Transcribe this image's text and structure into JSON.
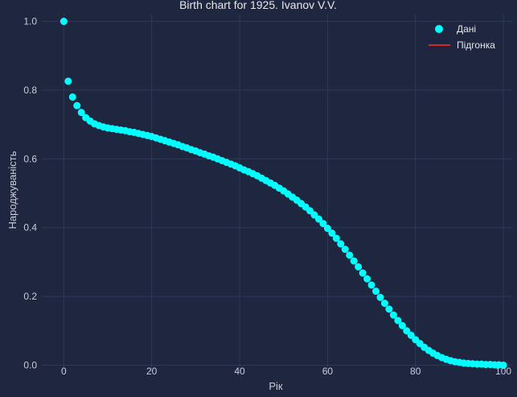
{
  "chart_data": {
    "type": "scatter",
    "title": "Birth chart for 1925. Ivanov V.V.",
    "xlabel": "Рік",
    "ylabel": "Народжуваність",
    "xlim": [
      -5,
      102
    ],
    "ylim": [
      -0.02,
      1.02
    ],
    "xticks": [
      "0",
      "20",
      "40",
      "60",
      "80",
      "100"
    ],
    "yticks": [
      "0.0",
      "0.2",
      "0.4",
      "0.6",
      "0.8",
      "1.0"
    ],
    "grid": true,
    "legend_position": "top-right",
    "series": [
      {
        "name": "Дані",
        "kind": "scatter",
        "color": "#00ffff",
        "x": [
          0,
          1,
          2,
          3,
          4,
          5,
          6,
          7,
          8,
          9,
          10,
          11,
          12,
          13,
          14,
          15,
          16,
          17,
          18,
          19,
          20,
          21,
          22,
          23,
          24,
          25,
          26,
          27,
          28,
          29,
          30,
          31,
          32,
          33,
          34,
          35,
          36,
          37,
          38,
          39,
          40,
          41,
          42,
          43,
          44,
          45,
          46,
          47,
          48,
          49,
          50,
          51,
          52,
          53,
          54,
          55,
          56,
          57,
          58,
          59,
          60,
          61,
          62,
          63,
          64,
          65,
          66,
          67,
          68,
          69,
          70,
          71,
          72,
          73,
          74,
          75,
          76,
          77,
          78,
          79,
          80,
          81,
          82,
          83,
          84,
          85,
          86,
          87,
          88,
          89,
          90,
          91,
          92,
          93,
          94,
          95,
          96,
          97,
          98,
          99,
          100
        ],
        "y": [
          1.0,
          0.826,
          0.78,
          0.755,
          0.735,
          0.72,
          0.71,
          0.702,
          0.697,
          0.693,
          0.69,
          0.688,
          0.686,
          0.684,
          0.682,
          0.679,
          0.677,
          0.674,
          0.671,
          0.668,
          0.665,
          0.661,
          0.657,
          0.653,
          0.649,
          0.645,
          0.641,
          0.636,
          0.632,
          0.627,
          0.623,
          0.618,
          0.614,
          0.609,
          0.605,
          0.6,
          0.595,
          0.59,
          0.585,
          0.58,
          0.574,
          0.568,
          0.563,
          0.557,
          0.551,
          0.544,
          0.537,
          0.53,
          0.523,
          0.515,
          0.507,
          0.498,
          0.489,
          0.48,
          0.47,
          0.46,
          0.449,
          0.437,
          0.425,
          0.412,
          0.398,
          0.384,
          0.369,
          0.353,
          0.337,
          0.32,
          0.303,
          0.286,
          0.268,
          0.251,
          0.233,
          0.215,
          0.197,
          0.18,
          0.163,
          0.146,
          0.13,
          0.115,
          0.1,
          0.087,
          0.074,
          0.063,
          0.052,
          0.043,
          0.035,
          0.028,
          0.022,
          0.017,
          0.013,
          0.01,
          0.008,
          0.006,
          0.005,
          0.004,
          0.003,
          0.003,
          0.002,
          0.002,
          0.001,
          0.001,
          0.0
        ]
      },
      {
        "name": "Підгонка",
        "kind": "line",
        "color": "#d62728"
      }
    ]
  }
}
